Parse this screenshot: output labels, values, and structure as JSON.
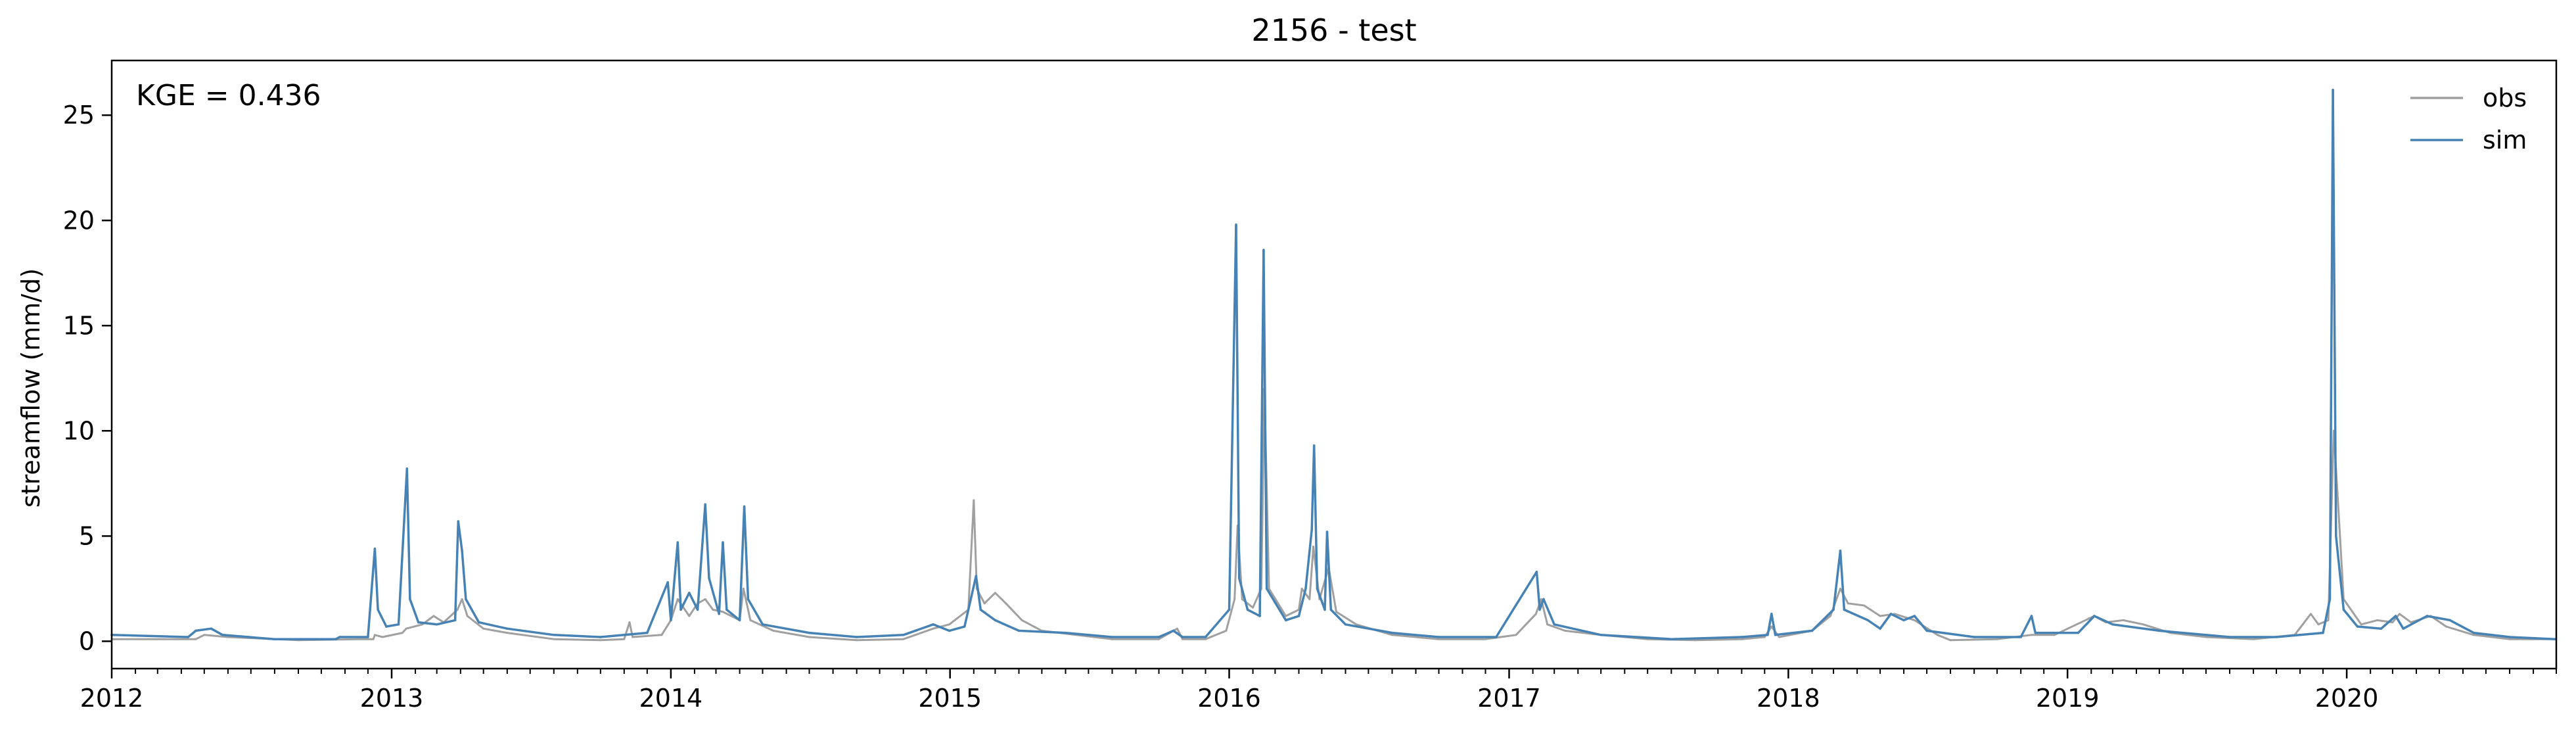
{
  "chart_data": {
    "type": "line",
    "title": "2156 - test",
    "xlabel": "",
    "ylabel": "streamflow (mm/d)",
    "annotation": "KGE = 0.436",
    "legend": {
      "placement": "top-right"
    },
    "grid": false,
    "xlim": [
      "2012-01-01",
      "2020-10-01"
    ],
    "ylim": [
      -1.3,
      27.6
    ],
    "xticks": [
      {
        "date": "2012-01-01",
        "label": "2012"
      },
      {
        "date": "2013-01-01",
        "label": "2013"
      },
      {
        "date": "2014-01-01",
        "label": "2014"
      },
      {
        "date": "2015-01-01",
        "label": "2015"
      },
      {
        "date": "2016-01-01",
        "label": "2016"
      },
      {
        "date": "2017-01-01",
        "label": "2017"
      },
      {
        "date": "2018-01-01",
        "label": "2018"
      },
      {
        "date": "2019-01-01",
        "label": "2019"
      },
      {
        "date": "2020-01-01",
        "label": "2020"
      }
    ],
    "yticks": [
      0,
      5,
      10,
      15,
      20,
      25
    ],
    "series": [
      {
        "name": "obs",
        "color": "#a0a0a0",
        "points": [
          [
            "2012-01-01",
            0.1
          ],
          [
            "2012-04-20",
            0.1
          ],
          [
            "2012-05-01",
            0.3
          ],
          [
            "2012-06-01",
            0.2
          ],
          [
            "2012-09-01",
            0.05
          ],
          [
            "2012-11-20",
            0.1
          ],
          [
            "2012-12-08",
            0.1
          ],
          [
            "2012-12-10",
            0.3
          ],
          [
            "2012-12-20",
            0.2
          ],
          [
            "2013-01-15",
            0.4
          ],
          [
            "2013-01-20",
            0.6
          ],
          [
            "2013-02-10",
            0.8
          ],
          [
            "2013-02-25",
            1.2
          ],
          [
            "2013-03-10",
            0.9
          ],
          [
            "2013-03-28",
            1.5
          ],
          [
            "2013-04-03",
            2.0
          ],
          [
            "2013-04-10",
            1.2
          ],
          [
            "2013-05-01",
            0.6
          ],
          [
            "2013-06-01",
            0.4
          ],
          [
            "2013-08-01",
            0.1
          ],
          [
            "2013-10-01",
            0.05
          ],
          [
            "2013-11-01",
            0.1
          ],
          [
            "2013-11-08",
            0.9
          ],
          [
            "2013-11-12",
            0.2
          ],
          [
            "2013-12-20",
            0.3
          ],
          [
            "2014-01-01",
            1.0
          ],
          [
            "2014-01-10",
            2.0
          ],
          [
            "2014-01-25",
            1.2
          ],
          [
            "2014-02-05",
            1.8
          ],
          [
            "2014-02-15",
            2.0
          ],
          [
            "2014-02-25",
            1.5
          ],
          [
            "2014-03-10",
            1.4
          ],
          [
            "2014-04-01",
            1.0
          ],
          [
            "2014-04-06",
            2.5
          ],
          [
            "2014-04-15",
            1.0
          ],
          [
            "2014-05-15",
            0.5
          ],
          [
            "2014-07-01",
            0.2
          ],
          [
            "2014-09-01",
            0.05
          ],
          [
            "2014-11-01",
            0.1
          ],
          [
            "2014-12-10",
            0.6
          ],
          [
            "2014-12-31",
            0.8
          ],
          [
            "2015-01-25",
            1.5
          ],
          [
            "2015-02-01",
            6.7
          ],
          [
            "2015-02-05",
            2.5
          ],
          [
            "2015-02-15",
            1.8
          ],
          [
            "2015-03-01",
            2.3
          ],
          [
            "2015-03-15",
            1.8
          ],
          [
            "2015-04-05",
            1.0
          ],
          [
            "2015-05-01",
            0.5
          ],
          [
            "2015-06-15",
            0.3
          ],
          [
            "2015-08-01",
            0.1
          ],
          [
            "2015-10-01",
            0.1
          ],
          [
            "2015-10-25",
            0.6
          ],
          [
            "2015-11-01",
            0.1
          ],
          [
            "2015-12-01",
            0.1
          ],
          [
            "2015-12-28",
            0.5
          ],
          [
            "2016-01-08",
            2.0
          ],
          [
            "2016-01-12",
            5.5
          ],
          [
            "2016-01-18",
            2.0
          ],
          [
            "2016-02-01",
            1.6
          ],
          [
            "2016-02-12",
            2.5
          ],
          [
            "2016-02-16",
            12.0
          ],
          [
            "2016-02-22",
            2.5
          ],
          [
            "2016-03-15",
            1.2
          ],
          [
            "2016-04-01",
            1.5
          ],
          [
            "2016-04-05",
            2.5
          ],
          [
            "2016-04-15",
            2.0
          ],
          [
            "2016-04-20",
            4.5
          ],
          [
            "2016-04-28",
            2.0
          ],
          [
            "2016-05-10",
            3.5
          ],
          [
            "2016-05-20",
            1.4
          ],
          [
            "2016-06-15",
            0.8
          ],
          [
            "2016-08-01",
            0.3
          ],
          [
            "2016-10-01",
            0.1
          ],
          [
            "2016-12-01",
            0.1
          ],
          [
            "2017-01-10",
            0.3
          ],
          [
            "2017-02-05",
            1.3
          ],
          [
            "2017-02-12",
            2.0
          ],
          [
            "2017-02-20",
            0.8
          ],
          [
            "2017-03-15",
            0.5
          ],
          [
            "2017-05-01",
            0.3
          ],
          [
            "2017-07-01",
            0.1
          ],
          [
            "2017-09-01",
            0.05
          ],
          [
            "2017-11-01",
            0.1
          ],
          [
            "2017-12-01",
            0.2
          ],
          [
            "2017-12-10",
            0.7
          ],
          [
            "2017-12-20",
            0.2
          ],
          [
            "2018-02-01",
            0.5
          ],
          [
            "2018-02-25",
            1.2
          ],
          [
            "2018-03-10",
            2.5
          ],
          [
            "2018-03-20",
            1.8
          ],
          [
            "2018-04-10",
            1.7
          ],
          [
            "2018-05-01",
            1.2
          ],
          [
            "2018-05-20",
            1.3
          ],
          [
            "2018-06-15",
            1.0
          ],
          [
            "2018-07-15",
            0.3
          ],
          [
            "2018-08-01",
            0.05
          ],
          [
            "2018-10-01",
            0.1
          ],
          [
            "2018-11-15",
            0.3
          ],
          [
            "2018-12-15",
            0.3
          ],
          [
            "2019-02-05",
            1.2
          ],
          [
            "2019-02-20",
            0.9
          ],
          [
            "2019-03-15",
            1.0
          ],
          [
            "2019-04-10",
            0.8
          ],
          [
            "2019-05-15",
            0.4
          ],
          [
            "2019-07-01",
            0.2
          ],
          [
            "2019-09-01",
            0.1
          ],
          [
            "2019-10-25",
            0.3
          ],
          [
            "2019-11-15",
            1.3
          ],
          [
            "2019-11-25",
            0.8
          ],
          [
            "2019-12-08",
            1.0
          ],
          [
            "2019-12-15",
            10.0
          ],
          [
            "2019-12-20",
            7.0
          ],
          [
            "2019-12-28",
            2.0
          ],
          [
            "2020-01-20",
            0.8
          ],
          [
            "2020-02-10",
            1.0
          ],
          [
            "2020-03-01",
            0.9
          ],
          [
            "2020-03-10",
            1.3
          ],
          [
            "2020-03-25",
            0.9
          ],
          [
            "2020-04-20",
            1.2
          ],
          [
            "2020-05-10",
            0.7
          ],
          [
            "2020-06-15",
            0.3
          ],
          [
            "2020-08-01",
            0.1
          ],
          [
            "2020-09-30",
            0.1
          ]
        ]
      },
      {
        "name": "sim",
        "color": "#4682b4",
        "points": [
          [
            "2012-01-01",
            0.3
          ],
          [
            "2012-04-10",
            0.2
          ],
          [
            "2012-04-20",
            0.5
          ],
          [
            "2012-05-10",
            0.6
          ],
          [
            "2012-05-25",
            0.3
          ],
          [
            "2012-08-01",
            0.1
          ],
          [
            "2012-10-20",
            0.1
          ],
          [
            "2012-10-25",
            0.2
          ],
          [
            "2012-12-01",
            0.2
          ],
          [
            "2012-12-10",
            4.4
          ],
          [
            "2012-12-14",
            1.5
          ],
          [
            "2012-12-25",
            0.7
          ],
          [
            "2013-01-10",
            0.8
          ],
          [
            "2013-01-21",
            8.2
          ],
          [
            "2013-01-25",
            2.0
          ],
          [
            "2013-02-05",
            0.9
          ],
          [
            "2013-03-01",
            0.8
          ],
          [
            "2013-03-25",
            1.0
          ],
          [
            "2013-03-29",
            5.7
          ],
          [
            "2013-04-03",
            4.3
          ],
          [
            "2013-04-08",
            2.0
          ],
          [
            "2013-04-25",
            0.9
          ],
          [
            "2013-06-01",
            0.6
          ],
          [
            "2013-08-01",
            0.3
          ],
          [
            "2013-10-01",
            0.2
          ],
          [
            "2013-11-01",
            0.3
          ],
          [
            "2013-12-01",
            0.4
          ],
          [
            "2013-12-28",
            2.8
          ],
          [
            "2014-01-01",
            1.0
          ],
          [
            "2014-01-10",
            4.7
          ],
          [
            "2014-01-14",
            1.5
          ],
          [
            "2014-01-25",
            2.3
          ],
          [
            "2014-02-05",
            1.5
          ],
          [
            "2014-02-15",
            6.5
          ],
          [
            "2014-02-20",
            3.0
          ],
          [
            "2014-03-05",
            1.3
          ],
          [
            "2014-03-10",
            4.7
          ],
          [
            "2014-03-15",
            1.5
          ],
          [
            "2014-04-01",
            1.0
          ],
          [
            "2014-04-07",
            6.4
          ],
          [
            "2014-04-12",
            2.0
          ],
          [
            "2014-05-01",
            0.8
          ],
          [
            "2014-07-01",
            0.4
          ],
          [
            "2014-09-01",
            0.2
          ],
          [
            "2014-11-01",
            0.3
          ],
          [
            "2014-12-10",
            0.8
          ],
          [
            "2014-12-31",
            0.5
          ],
          [
            "2015-01-20",
            0.7
          ],
          [
            "2015-02-04",
            3.1
          ],
          [
            "2015-02-10",
            1.5
          ],
          [
            "2015-03-01",
            1.0
          ],
          [
            "2015-04-01",
            0.5
          ],
          [
            "2015-06-01",
            0.4
          ],
          [
            "2015-08-01",
            0.2
          ],
          [
            "2015-10-01",
            0.2
          ],
          [
            "2015-10-20",
            0.5
          ],
          [
            "2015-11-01",
            0.2
          ],
          [
            "2015-12-01",
            0.2
          ],
          [
            "2016-01-01",
            1.5
          ],
          [
            "2016-01-10",
            19.8
          ],
          [
            "2016-01-14",
            3.0
          ],
          [
            "2016-01-25",
            1.5
          ],
          [
            "2016-02-10",
            1.2
          ],
          [
            "2016-02-15",
            18.6
          ],
          [
            "2016-02-19",
            2.5
          ],
          [
            "2016-03-15",
            1.0
          ],
          [
            "2016-04-01",
            1.2
          ],
          [
            "2016-04-10",
            2.5
          ],
          [
            "2016-04-18",
            5.3
          ],
          [
            "2016-04-21",
            9.3
          ],
          [
            "2016-04-25",
            2.5
          ],
          [
            "2016-05-05",
            1.5
          ],
          [
            "2016-05-08",
            5.2
          ],
          [
            "2016-05-13",
            1.5
          ],
          [
            "2016-06-01",
            0.8
          ],
          [
            "2016-08-01",
            0.4
          ],
          [
            "2016-10-01",
            0.2
          ],
          [
            "2016-12-15",
            0.2
          ],
          [
            "2017-02-06",
            3.3
          ],
          [
            "2017-02-10",
            1.5
          ],
          [
            "2017-02-15",
            2.0
          ],
          [
            "2017-03-01",
            0.8
          ],
          [
            "2017-05-01",
            0.3
          ],
          [
            "2017-08-01",
            0.1
          ],
          [
            "2017-11-01",
            0.2
          ],
          [
            "2017-12-05",
            0.3
          ],
          [
            "2017-12-10",
            1.3
          ],
          [
            "2017-12-15",
            0.3
          ],
          [
            "2018-02-01",
            0.5
          ],
          [
            "2018-03-01",
            1.5
          ],
          [
            "2018-03-10",
            4.3
          ],
          [
            "2018-03-15",
            1.5
          ],
          [
            "2018-04-15",
            1.0
          ],
          [
            "2018-05-01",
            0.6
          ],
          [
            "2018-05-15",
            1.3
          ],
          [
            "2018-06-01",
            1.0
          ],
          [
            "2018-06-15",
            1.2
          ],
          [
            "2018-07-01",
            0.5
          ],
          [
            "2018-09-01",
            0.2
          ],
          [
            "2018-11-01",
            0.2
          ],
          [
            "2018-11-15",
            1.2
          ],
          [
            "2018-11-20",
            0.4
          ],
          [
            "2019-01-15",
            0.4
          ],
          [
            "2019-02-05",
            1.2
          ],
          [
            "2019-03-01",
            0.8
          ],
          [
            "2019-05-01",
            0.5
          ],
          [
            "2019-08-01",
            0.2
          ],
          [
            "2019-10-01",
            0.2
          ],
          [
            "2019-11-01",
            0.3
          ],
          [
            "2019-12-01",
            0.4
          ],
          [
            "2019-12-10",
            2.0
          ],
          [
            "2019-12-14",
            26.2
          ],
          [
            "2019-12-18",
            5.0
          ],
          [
            "2019-12-28",
            1.5
          ],
          [
            "2020-01-15",
            0.7
          ],
          [
            "2020-02-15",
            0.6
          ],
          [
            "2020-03-05",
            1.2
          ],
          [
            "2020-03-15",
            0.6
          ],
          [
            "2020-04-15",
            1.2
          ],
          [
            "2020-05-15",
            1.0
          ],
          [
            "2020-06-15",
            0.4
          ],
          [
            "2020-08-01",
            0.2
          ],
          [
            "2020-09-30",
            0.1
          ]
        ]
      }
    ]
  }
}
